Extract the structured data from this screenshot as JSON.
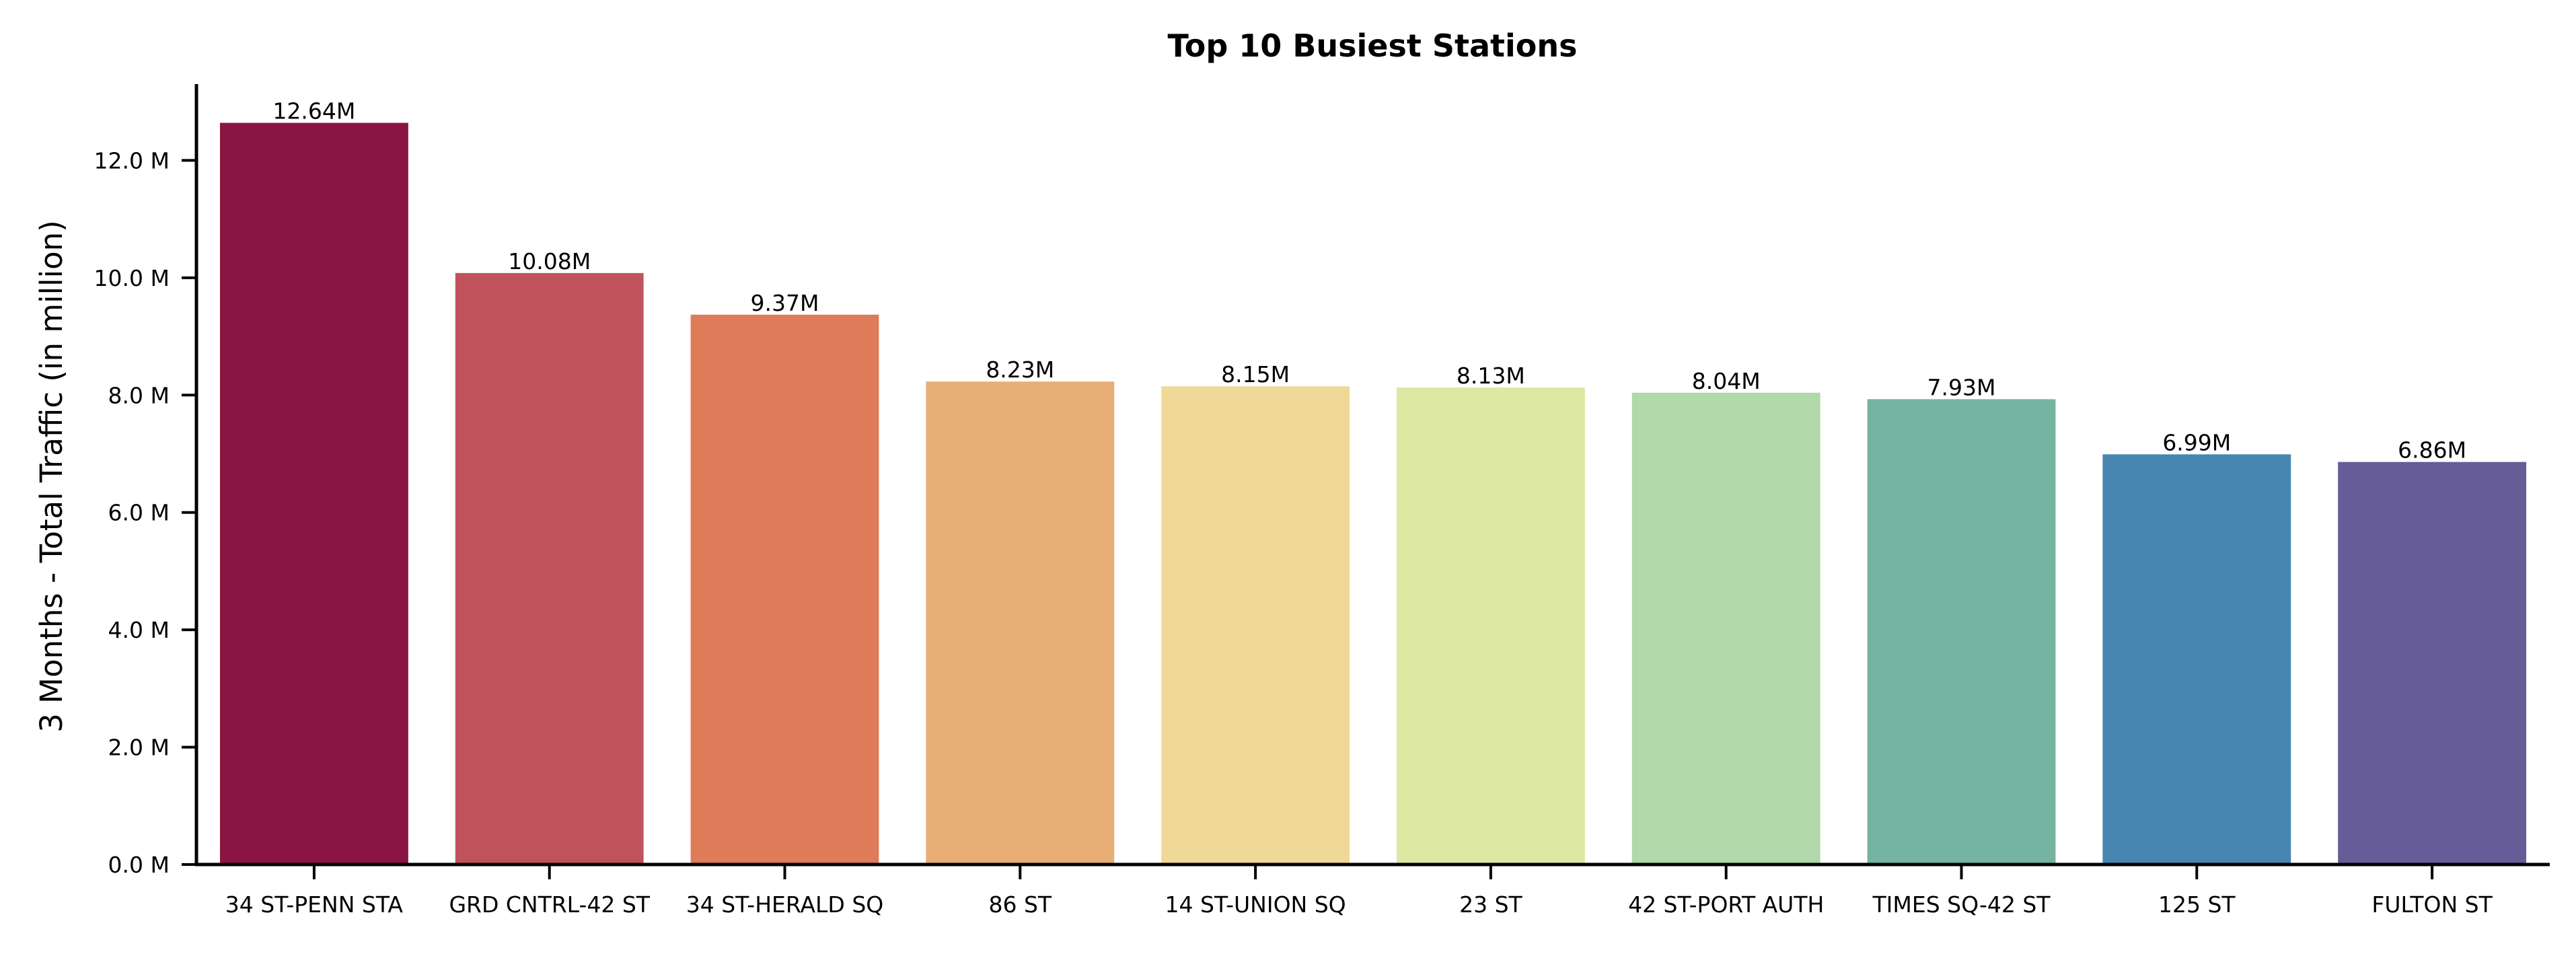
{
  "chart_data": {
    "type": "bar",
    "title": "Top 10 Busiest Stations",
    "xlabel": "",
    "ylabel": "3 Months - Total Traffic (in million)",
    "categories": [
      "34 ST-PENN STA",
      "GRD CNTRL-42 ST",
      "34 ST-HERALD SQ",
      "86 ST",
      "14 ST-UNION SQ",
      "23 ST",
      "42 ST-PORT AUTH",
      "TIMES SQ-42 ST",
      "125 ST",
      "FULTON ST"
    ],
    "values": [
      12.64,
      10.08,
      9.37,
      8.23,
      8.15,
      8.13,
      8.04,
      7.93,
      6.99,
      6.86
    ],
    "data_labels": [
      "12.64M",
      "10.08M",
      "9.37M",
      "8.23M",
      "8.15M",
      "8.13M",
      "8.04M",
      "7.93M",
      "6.99M",
      "6.86M"
    ],
    "colors": [
      "#8b1542",
      "#c0525c",
      "#de7b59",
      "#e9ad76",
      "#f0d898",
      "#dde8a3",
      "#b0d8a8",
      "#74b4a0",
      "#4686b1",
      "#665c97"
    ],
    "ylim": [
      0,
      13.3
    ],
    "yticks": [
      0,
      2,
      4,
      6,
      8,
      10,
      12
    ],
    "ytick_labels": [
      "0.0 M",
      "2.0 M",
      "4.0 M",
      "6.0 M",
      "8.0 M",
      "10.0 M",
      "12.0 M"
    ],
    "grid": false,
    "legend": "none"
  }
}
